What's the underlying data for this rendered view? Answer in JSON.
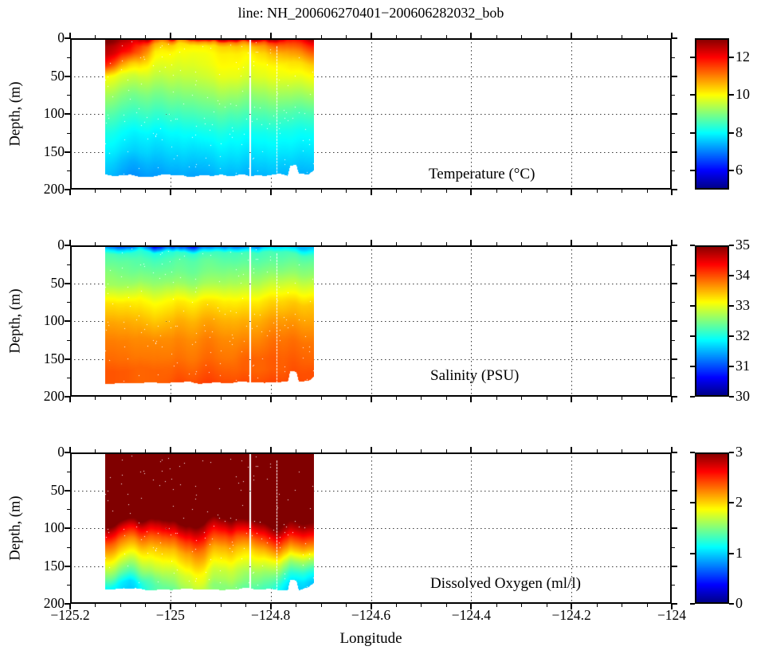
{
  "figure": {
    "title": "line: NH_200606270401−200606282032_bob",
    "xlabel": "Longitude",
    "ylabel": "Depth, (m)",
    "background": "#ffffff",
    "axis_color": "#000000",
    "grid_color": "#3a3a3a",
    "colormap": "jet"
  },
  "axes": {
    "xlim": [
      -125.2,
      -124.0
    ],
    "xticks": [
      -125.2,
      -125.0,
      -124.8,
      -124.6,
      -124.4,
      -124.2,
      -124.0
    ],
    "xtick_labels": [
      "−125.2",
      "−125",
      "−124.8",
      "−124.6",
      "−124.4",
      "−124.2",
      "−124"
    ],
    "x_minor_step": 0.05,
    "ylim": [
      0,
      200
    ],
    "yticks": [
      0,
      50,
      100,
      150,
      200
    ],
    "ytick_labels": [
      "0",
      "50",
      "100",
      "150",
      "200"
    ],
    "y_minor_step": 25,
    "grid": "dotted"
  },
  "chart_data": [
    {
      "type": "heatmap",
      "name": "temperature",
      "label": "Temperature (°C)",
      "units": "°C",
      "colormap": "jet",
      "clim": [
        5,
        13
      ],
      "colorbar_ticks": [
        6,
        8,
        10,
        12
      ],
      "lon_range": [
        -125.13,
        -124.715
      ],
      "depth_max": 181,
      "gap_lons": [
        -124.843
      ],
      "dotted_gap_lons": [
        -124.79
      ],
      "lons": [
        -125.13,
        -125.08,
        -125.03,
        -124.98,
        -124.93,
        -124.88,
        -124.84,
        -124.79,
        -124.72
      ],
      "depths": [
        0,
        5,
        10,
        20,
        35,
        50,
        75,
        100,
        125,
        150,
        165,
        181
      ],
      "values": [
        [
          13.0,
          12.9,
          12.8,
          12.8,
          12.8,
          12.9,
          13.0,
          12.9,
          12.8
        ],
        [
          12.9,
          12.6,
          11.4,
          11.0,
          10.9,
          11.0,
          11.2,
          11.7,
          12.2
        ],
        [
          12.6,
          12.3,
          10.7,
          10.3,
          10.2,
          10.4,
          10.6,
          11.2,
          11.8
        ],
        [
          12.4,
          11.9,
          10.2,
          10.0,
          10.0,
          10.1,
          10.2,
          10.6,
          11.2
        ],
        [
          11.6,
          10.6,
          9.9,
          9.8,
          9.9,
          10.0,
          10.0,
          10.1,
          10.4
        ],
        [
          9.9,
          9.8,
          9.6,
          9.6,
          9.7,
          9.8,
          9.8,
          9.9,
          10.0
        ],
        [
          9.2,
          9.1,
          9.0,
          9.1,
          9.2,
          9.2,
          9.2,
          9.3,
          9.3
        ],
        [
          8.6,
          8.6,
          8.5,
          8.6,
          8.7,
          8.6,
          8.7,
          8.7,
          8.6
        ],
        [
          8.1,
          8.1,
          8.0,
          8.1,
          8.2,
          8.1,
          8.2,
          8.2,
          8.1
        ],
        [
          7.8,
          7.8,
          7.7,
          7.8,
          7.8,
          7.8,
          7.9,
          7.9,
          7.8
        ],
        [
          7.6,
          7.5,
          7.5,
          7.6,
          7.6,
          7.6,
          7.7,
          7.7,
          7.6
        ],
        [
          7.4,
          7.3,
          7.3,
          7.4,
          7.4,
          7.4,
          7.5,
          7.5,
          7.4
        ]
      ]
    },
    {
      "type": "heatmap",
      "name": "salinity",
      "label": "Salinity (PSU)",
      "units": "PSU",
      "colormap": "jet",
      "clim": [
        30,
        35
      ],
      "colorbar_ticks": [
        30,
        31,
        32,
        33,
        34,
        35
      ],
      "lon_range": [
        -125.13,
        -124.715
      ],
      "depth_max": 181,
      "gap_lons": [
        -124.843
      ],
      "dotted_gap_lons": [
        -124.79
      ],
      "lons": [
        -125.13,
        -125.08,
        -125.03,
        -124.98,
        -124.93,
        -124.88,
        -124.84,
        -124.79,
        -124.72
      ],
      "depths": [
        0,
        5,
        10,
        20,
        35,
        50,
        75,
        100,
        125,
        150,
        165,
        181
      ],
      "values": [
        [
          31.2,
          30.8,
          30.4,
          30.5,
          30.7,
          30.9,
          31.0,
          31.3,
          31.6
        ],
        [
          31.8,
          31.6,
          31.2,
          31.3,
          31.5,
          31.6,
          31.7,
          31.8,
          31.9
        ],
        [
          32.2,
          32.1,
          32.0,
          32.1,
          32.1,
          32.2,
          32.2,
          32.2,
          32.2
        ],
        [
          32.3,
          32.3,
          32.2,
          32.3,
          32.3,
          32.3,
          32.3,
          32.3,
          32.4
        ],
        [
          32.5,
          32.4,
          32.4,
          32.4,
          32.4,
          32.5,
          32.5,
          32.5,
          32.6
        ],
        [
          32.6,
          32.6,
          32.6,
          32.6,
          32.6,
          32.7,
          32.7,
          32.8,
          32.9
        ],
        [
          33.2,
          33.2,
          33.1,
          33.2,
          33.2,
          33.2,
          33.2,
          33.3,
          33.4
        ],
        [
          33.5,
          33.5,
          33.4,
          33.5,
          33.5,
          33.5,
          33.5,
          33.6,
          33.6
        ],
        [
          33.7,
          33.7,
          33.7,
          33.7,
          33.7,
          33.7,
          33.7,
          33.8,
          33.8
        ],
        [
          33.8,
          33.8,
          33.8,
          33.8,
          33.8,
          33.8,
          33.9,
          33.9,
          33.9
        ],
        [
          33.9,
          33.9,
          33.9,
          33.9,
          33.9,
          33.9,
          33.9,
          33.9,
          34.0
        ],
        [
          33.9,
          33.9,
          33.9,
          34.0,
          34.0,
          34.0,
          34.0,
          34.0,
          34.0
        ]
      ]
    },
    {
      "type": "heatmap",
      "name": "dissolved-oxygen",
      "label": "Dissolved Oxygen (ml/l)",
      "units": "ml/l",
      "colormap": "jet",
      "clim": [
        0,
        3
      ],
      "colorbar_ticks": [
        0,
        1,
        2,
        3
      ],
      "lon_range": [
        -125.13,
        -124.715
      ],
      "depth_max": 181,
      "gap_lons": [
        -124.843
      ],
      "dotted_gap_lons": [
        -124.79
      ],
      "lons": [
        -125.13,
        -125.08,
        -125.03,
        -124.98,
        -124.93,
        -124.88,
        -124.84,
        -124.79,
        -124.72
      ],
      "depths": [
        0,
        50,
        75,
        90,
        100,
        115,
        130,
        145,
        160,
        172,
        181
      ],
      "values": [
        [
          3.3,
          3.3,
          3.3,
          3.3,
          3.3,
          3.3,
          3.3,
          3.3,
          3.3
        ],
        [
          3.3,
          3.3,
          3.3,
          3.3,
          3.3,
          3.3,
          3.3,
          3.3,
          3.3
        ],
        [
          3.2,
          3.2,
          3.2,
          3.2,
          3.2,
          3.2,
          3.2,
          3.2,
          3.2
        ],
        [
          3.0,
          2.95,
          3.0,
          3.05,
          3.05,
          3.05,
          3.0,
          3.1,
          3.1
        ],
        [
          2.7,
          2.6,
          2.7,
          2.8,
          2.8,
          2.8,
          2.7,
          2.9,
          2.9
        ],
        [
          2.3,
          2.2,
          2.3,
          2.4,
          2.5,
          2.4,
          2.3,
          2.5,
          2.5
        ],
        [
          2.0,
          1.9,
          2.0,
          2.1,
          2.2,
          2.1,
          2.0,
          2.1,
          2.1
        ],
        [
          1.7,
          1.6,
          1.8,
          1.9,
          2.0,
          1.9,
          1.8,
          1.7,
          1.6
        ],
        [
          1.4,
          1.3,
          1.6,
          1.7,
          1.8,
          1.7,
          1.6,
          1.4,
          1.2
        ],
        [
          1.1,
          1.0,
          1.4,
          1.6,
          1.7,
          1.6,
          1.5,
          1.2,
          1.0
        ],
        [
          1.0,
          0.95,
          1.3,
          1.5,
          1.6,
          1.5,
          1.4,
          1.1,
          0.95
        ]
      ]
    }
  ],
  "bottom_profile": {
    "lons": [
      -125.13,
      -124.87,
      -124.767,
      -124.762,
      -124.75,
      -124.745,
      -124.725,
      -124.715
    ],
    "depths": [
      181,
      181,
      181,
      167,
      167,
      180,
      179,
      173
    ]
  }
}
